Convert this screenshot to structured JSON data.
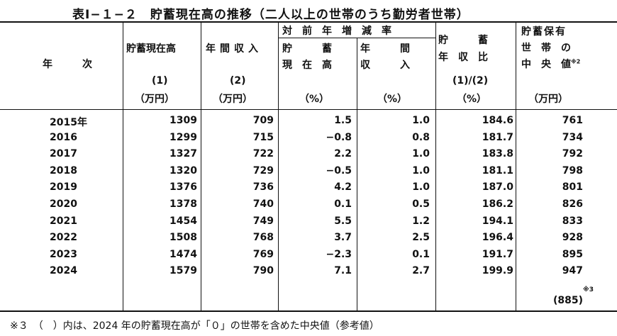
{
  "title": "表Ⅰ−１−２　貯蓄現在高の推移（二人以上の世帯のうち勤労者世帯）",
  "headers": {
    "year": "年　　　次",
    "savings": "貯蓄現在高",
    "income": "年間収入",
    "yoy_group": "対　前　年　増　減　率",
    "yoy_savings_1": "貯　　　蓄",
    "yoy_savings_2": "現　在　高",
    "yoy_income_1": "年　　　間",
    "yoy_income_2": "収　　　入",
    "ratio_1": "貯　　　蓄",
    "ratio_2": "年　収　比",
    "median_1": "貯蓄保有",
    "median_2": "世　帯　の",
    "median_3": "中　央　値",
    "median_mark": "※2",
    "savings_num": "(1)",
    "income_num": "(2)",
    "ratio_num": "(1)/(2)",
    "unit_man": "（万円）",
    "unit_pct": "（%）",
    "unit_pct_ratio": "（%）"
  },
  "rows": [
    {
      "year": "2015年",
      "savings": "1309",
      "income": "709",
      "yoy_s": "1.5",
      "yoy_i": "1.0",
      "ratio": "184.6",
      "median": "761"
    },
    {
      "year": "2016",
      "savings": "1299",
      "income": "715",
      "yoy_s": "−0.8",
      "yoy_i": "0.8",
      "ratio": "181.7",
      "median": "734"
    },
    {
      "year": "2017",
      "savings": "1327",
      "income": "722",
      "yoy_s": "2.2",
      "yoy_i": "1.0",
      "ratio": "183.8",
      "median": "792"
    },
    {
      "year": "2018",
      "savings": "1320",
      "income": "729",
      "yoy_s": "−0.5",
      "yoy_i": "1.0",
      "ratio": "181.1",
      "median": "798"
    },
    {
      "year": "2019",
      "savings": "1376",
      "income": "736",
      "yoy_s": "4.2",
      "yoy_i": "1.0",
      "ratio": "187.0",
      "median": "801"
    },
    {
      "year": "2020",
      "savings": "1378",
      "income": "740",
      "yoy_s": "0.1",
      "yoy_i": "0.5",
      "ratio": "186.2",
      "median": "826"
    },
    {
      "year": "2021",
      "savings": "1454",
      "income": "749",
      "yoy_s": "5.5",
      "yoy_i": "1.2",
      "ratio": "194.1",
      "median": "833"
    },
    {
      "year": "2022",
      "savings": "1508",
      "income": "768",
      "yoy_s": "3.7",
      "yoy_i": "2.5",
      "ratio": "196.4",
      "median": "928"
    },
    {
      "year": "2023",
      "savings": "1474",
      "income": "769",
      "yoy_s": "−2.3",
      "yoy_i": "0.1",
      "ratio": "191.7",
      "median": "895"
    },
    {
      "year": "2024",
      "savings": "1579",
      "income": "790",
      "yoy_s": "7.1",
      "yoy_i": "2.7",
      "ratio": "199.9",
      "median": "947"
    }
  ],
  "extra": {
    "mark": "※3",
    "value": "(885)"
  },
  "footnote": "※３　（　）内は、2024 年の貯蓄現在高が「０」の世帯を含めた中央値（参考値）"
}
